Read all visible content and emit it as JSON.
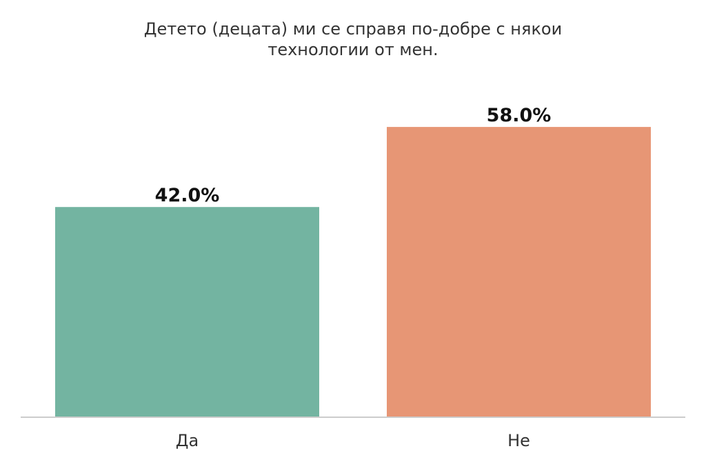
{
  "chart_data": {
    "type": "bar",
    "title_lines": [
      "Детето (децата) ми се справя по-добре с някои",
      "технологии от мен."
    ],
    "categories": [
      "Да",
      "Не"
    ],
    "values": [
      42.0,
      58.0
    ],
    "value_labels": [
      "42.0%",
      "58.0%"
    ],
    "colors": [
      "#73b4a1",
      "#e79675"
    ],
    "ylim": [
      0,
      70
    ],
    "grid": false,
    "legend": "none",
    "xlabel": "",
    "ylabel": ""
  }
}
